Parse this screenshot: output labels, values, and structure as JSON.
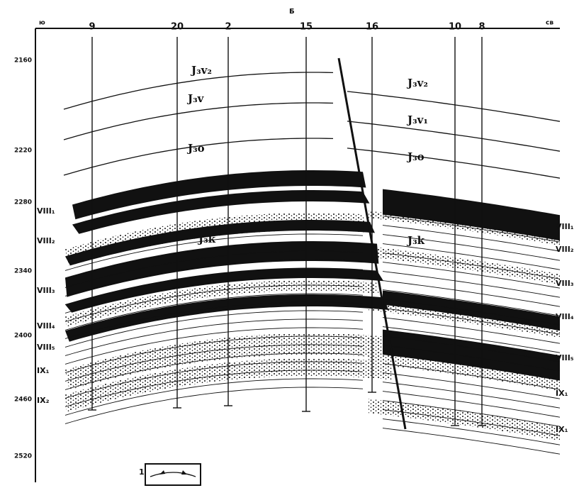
{
  "header": {
    "left": "ю",
    "center": "Б",
    "right": "св"
  },
  "wells": [
    {
      "label": "9"
    },
    {
      "label": "20"
    },
    {
      "label": "2"
    },
    {
      "label": "15"
    },
    {
      "label": "16"
    },
    {
      "label": "10"
    },
    {
      "label": "8"
    }
  ],
  "depths": [
    "2160",
    "2220",
    "2280",
    "2340",
    "2400",
    "2460",
    "2520"
  ],
  "formations_left": [
    "J₃v₂",
    "J₃v",
    "J₃o",
    "J₃k"
  ],
  "formations_right": [
    "J₃v₂",
    "J₃v₁",
    "J₃o",
    "J₃k"
  ],
  "layers_left": [
    "VIII₁",
    "VIII₂",
    "VIII₃",
    "VIII₄",
    "VIII₅",
    "IX₁",
    "IX₂"
  ],
  "layers_right": [
    "VIII₁",
    "VIII₂",
    "VIII₃",
    "VIII₄",
    "VIII₅",
    "IX₁",
    "IX₁"
  ],
  "legend": {
    "number": "1"
  }
}
